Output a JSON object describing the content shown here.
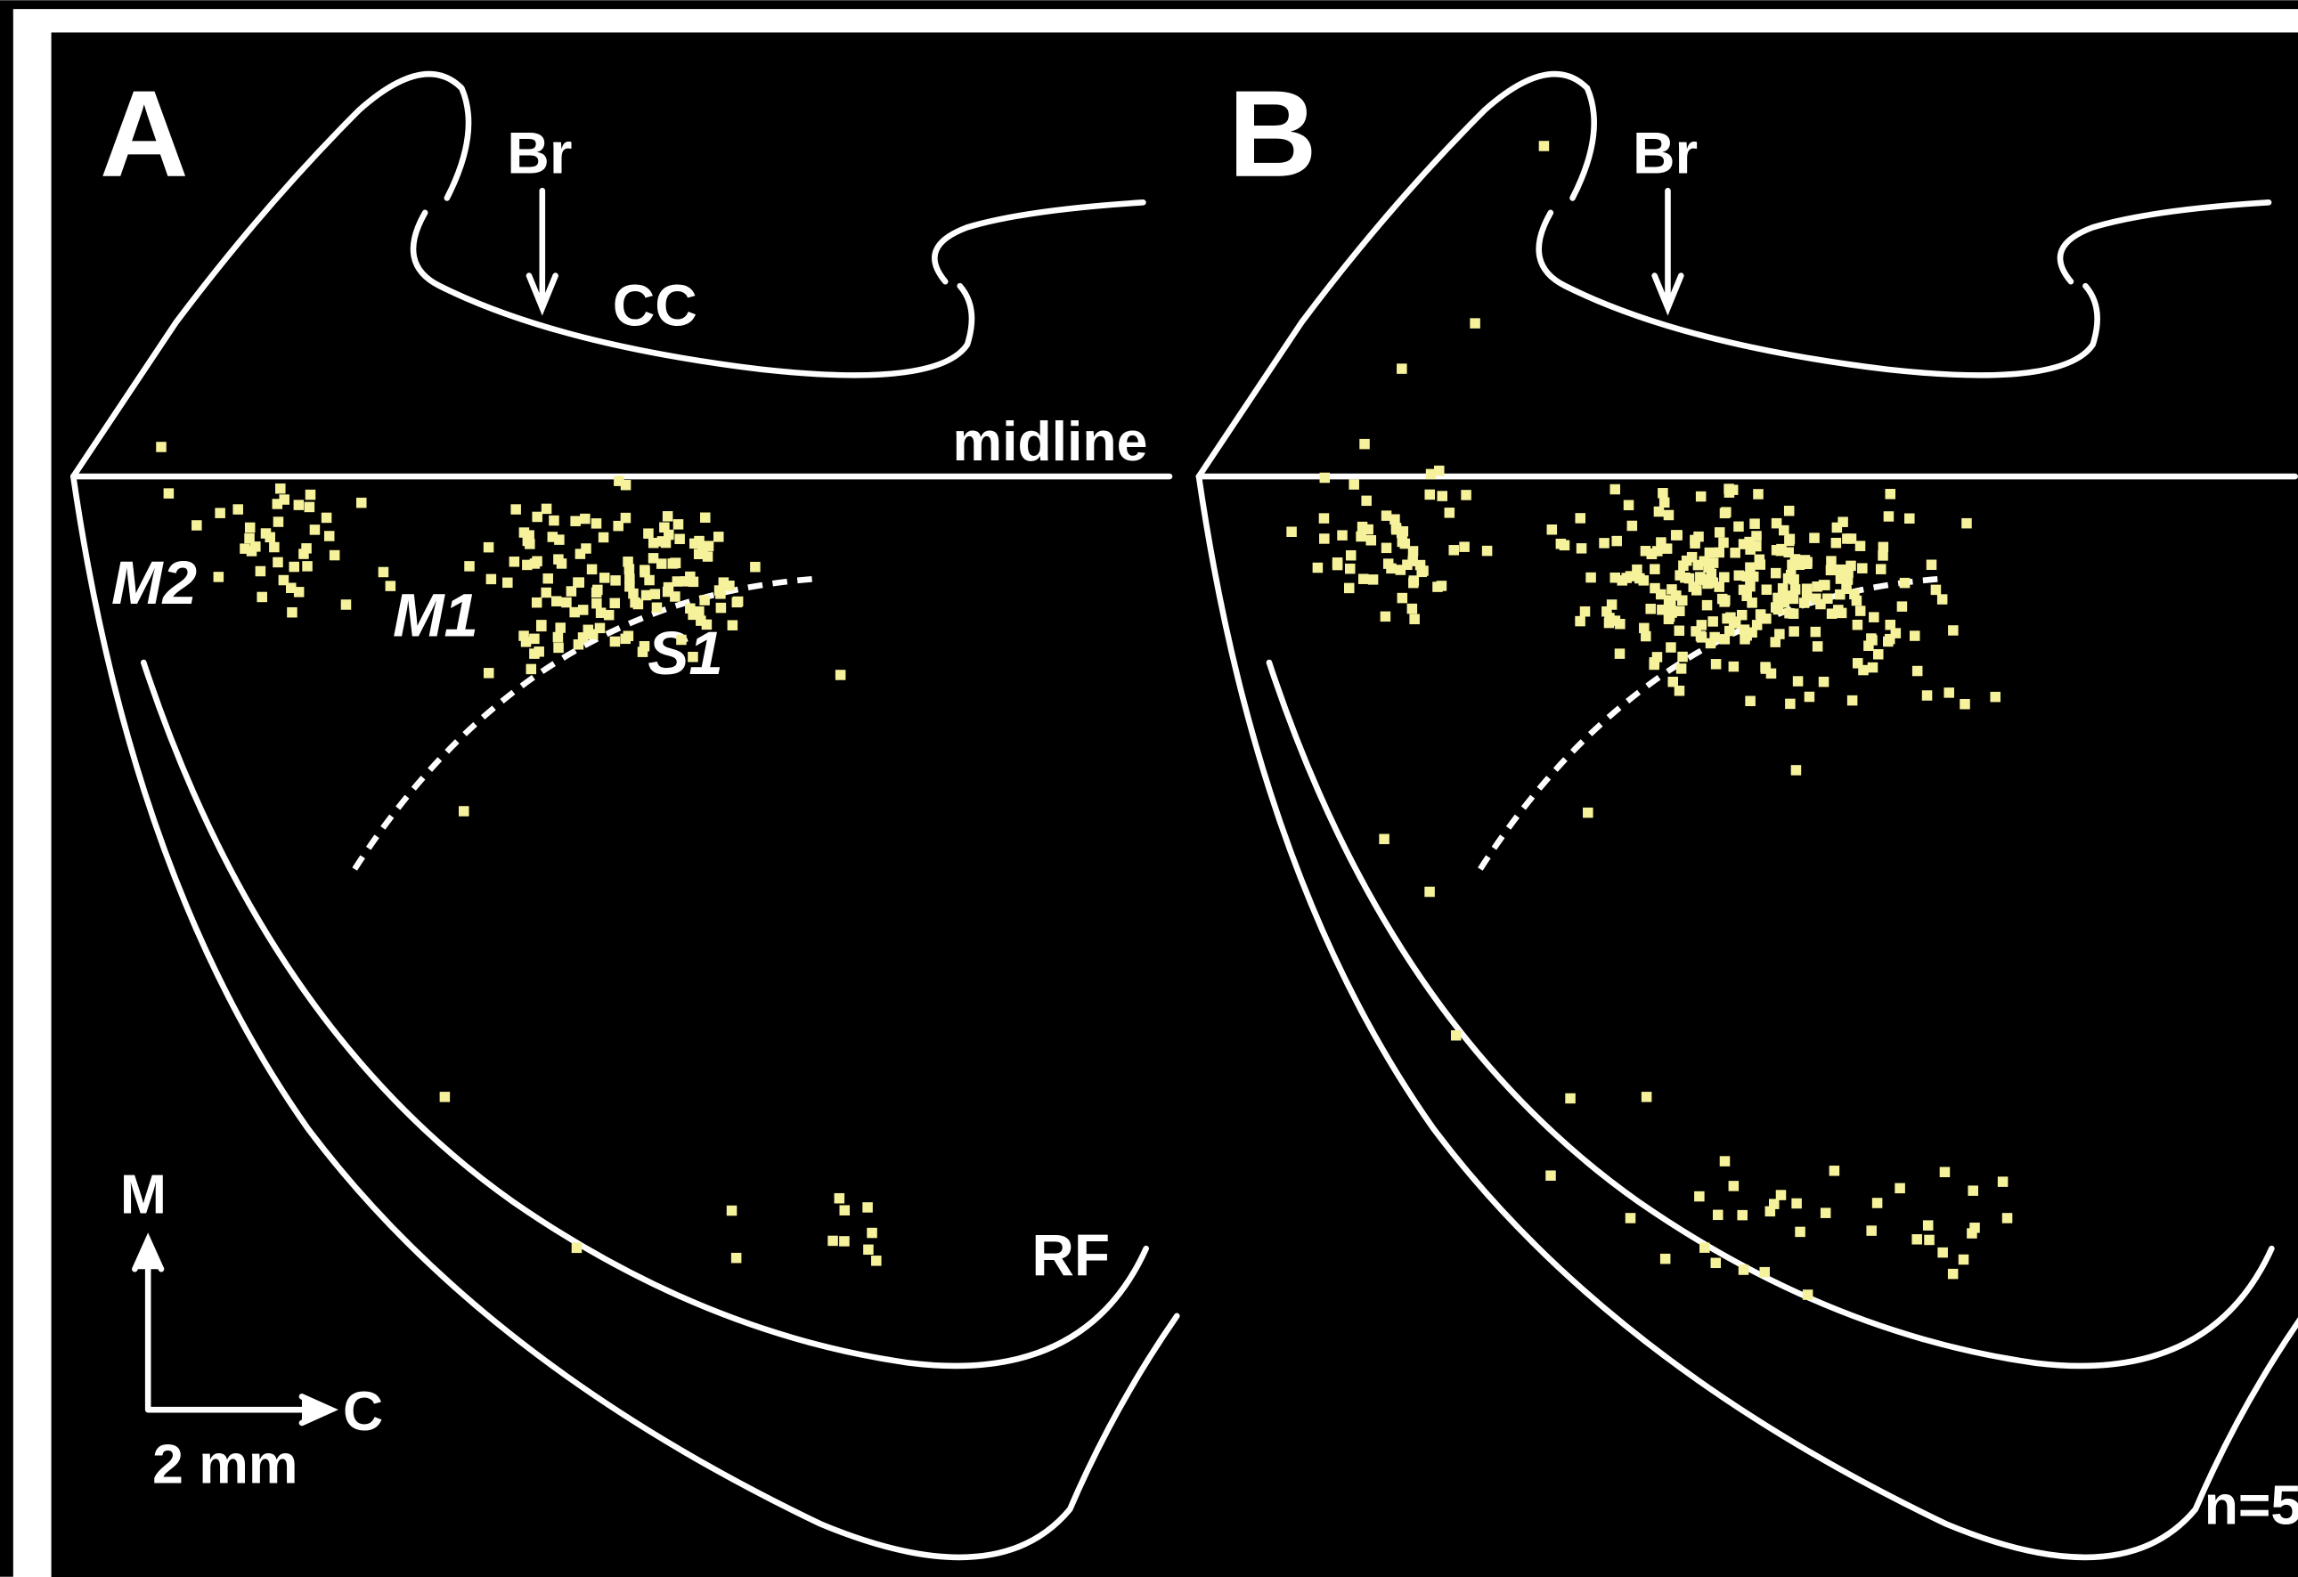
{
  "panel_a": {
    "letter": "A",
    "branch": "Br",
    "corpus": "CC",
    "midline": "midline",
    "areas": [
      "M2",
      "M1",
      "S1"
    ],
    "rhinal": "RF",
    "orientation": {
      "medial": "M",
      "caudal": "C",
      "scale": "2 mm"
    }
  },
  "panel_b": {
    "letter": "B",
    "branch": "Br",
    "count": "n=5"
  }
}
